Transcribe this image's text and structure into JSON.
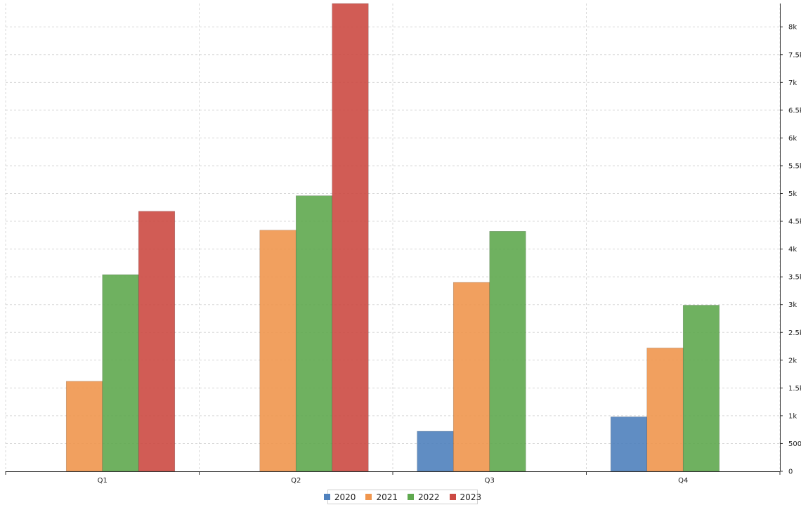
{
  "chart_data": {
    "type": "bar",
    "categories": [
      "Q1",
      "Q2",
      "Q3",
      "Q4"
    ],
    "series": [
      {
        "name": "2020",
        "color": "#4f81bd",
        "values": [
          0,
          0,
          720,
          980
        ]
      },
      {
        "name": "2021",
        "color": "#f0964e",
        "values": [
          1620,
          4340,
          3400,
          2220
        ]
      },
      {
        "name": "2022",
        "color": "#5fa94f",
        "values": [
          3540,
          4960,
          4320,
          2990
        ]
      },
      {
        "name": "2023",
        "color": "#cc4a43",
        "values": [
          4680,
          8420,
          0,
          0
        ]
      }
    ],
    "ylim": [
      0,
      8420
    ],
    "yticks": [
      0,
      500,
      1000,
      1500,
      2000,
      2500,
      3000,
      3500,
      4000,
      4500,
      5000,
      5500,
      6000,
      6500,
      7000,
      7500,
      8000
    ],
    "ytick_labels": [
      "0",
      "500",
      "1k",
      "1.5k",
      "2k",
      "2.5k",
      "3k",
      "3.5k",
      "4k",
      "4.5k",
      "5k",
      "5.5k",
      "6k",
      "6.5k",
      "7k",
      "7.5k",
      "8k"
    ],
    "y_axis_side": "right",
    "grid": true,
    "legend_position": "bottom-center",
    "title": "",
    "xlabel": "",
    "ylabel": ""
  }
}
